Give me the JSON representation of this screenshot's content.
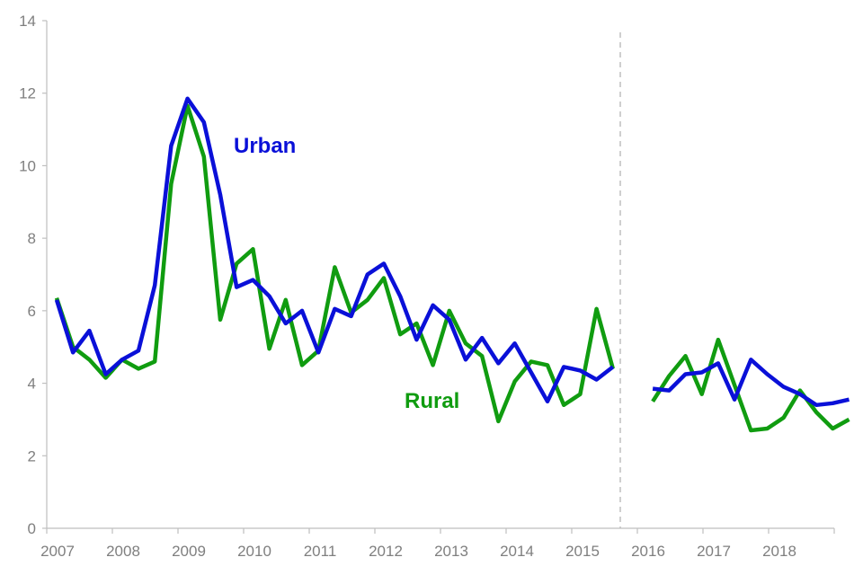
{
  "chart_data": {
    "type": "line",
    "title": "",
    "xlabel": "",
    "ylabel": "",
    "ylim": [
      0,
      14
    ],
    "y_ticks": [
      "0",
      "2",
      "4",
      "6",
      "8",
      "10",
      "12",
      "14"
    ],
    "x_ticks": [
      "2007",
      "2008",
      "2009",
      "2010",
      "2011",
      "2012",
      "2013",
      "2014",
      "2015",
      "2016",
      "2017",
      "2018"
    ],
    "break_marker": "dashed vertical line between the 2015 and 2016 segments",
    "grid": false,
    "series": [
      {
        "name": "Urban",
        "color": "#0a10d8",
        "segments": [
          [
            6.3,
            4.85,
            5.45,
            4.25,
            4.65,
            4.9,
            6.7,
            10.55,
            11.85,
            11.2,
            9.2,
            6.65,
            6.85,
            6.4,
            5.65,
            6.0,
            4.85,
            6.05,
            5.85,
            7.0,
            7.3,
            6.4,
            5.2,
            6.15,
            5.75,
            4.65,
            5.25,
            4.55,
            5.1,
            4.3,
            3.5,
            4.45,
            4.35,
            4.1,
            4.45
          ],
          [
            3.85,
            3.8,
            4.25,
            4.3,
            4.55,
            3.55,
            4.65,
            4.25,
            3.9,
            3.7,
            3.4,
            3.45,
            3.55
          ]
        ]
      },
      {
        "name": "Rural",
        "color": "#109c10",
        "segments": [
          [
            6.35,
            5.0,
            4.65,
            4.15,
            4.65,
            4.4,
            4.6,
            9.5,
            11.65,
            10.25,
            5.75,
            7.3,
            7.7,
            4.95,
            6.3,
            4.5,
            4.9,
            7.2,
            5.95,
            6.3,
            6.9,
            5.35,
            5.65,
            4.5,
            6.0,
            5.1,
            4.75,
            2.95,
            4.05,
            4.6,
            4.5,
            3.4,
            3.7,
            6.05,
            4.4
          ],
          [
            3.5,
            4.2,
            4.75,
            3.7,
            5.2,
            3.95,
            2.7,
            2.75,
            3.05,
            3.8,
            3.2,
            2.75,
            3.0
          ]
        ]
      }
    ]
  }
}
